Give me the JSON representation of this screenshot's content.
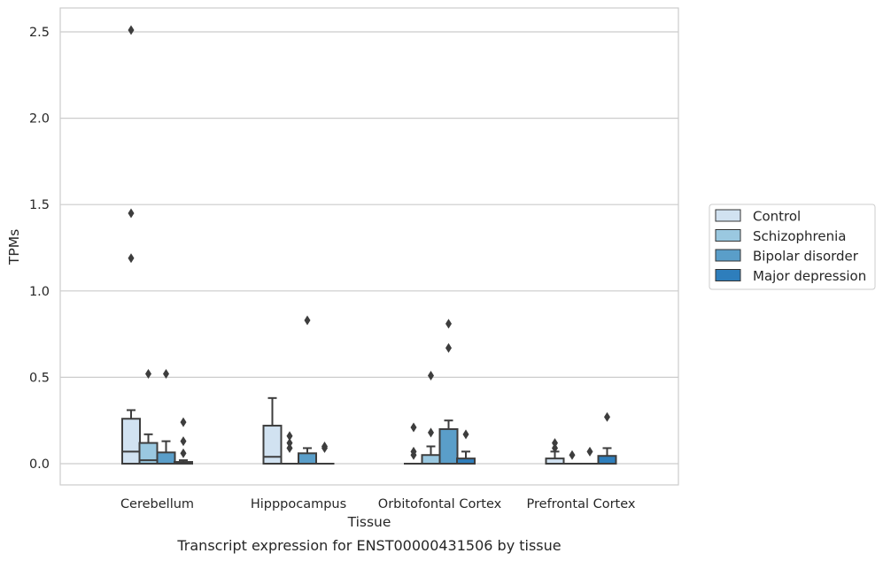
{
  "caption": "Transcript expression for ENST00000431506 by tissue",
  "chart_data": {
    "type": "boxplot",
    "xlabel": "Tissue",
    "ylabel": "TPMs",
    "ylim": [
      -0.12,
      2.64
    ],
    "yticks": [
      0.0,
      0.5,
      1.0,
      1.5,
      2.0,
      2.5
    ],
    "ytick_labels": [
      "0.0",
      "0.5",
      "1.0",
      "1.5",
      "2.0",
      "2.5"
    ],
    "grid": true,
    "legend_placement": "right",
    "categories": [
      "Cerebellum",
      "Hipppocampus",
      "Orbitofontal Cortex",
      "Prefrontal Cortex"
    ],
    "series": [
      {
        "name": "Control",
        "color": "#d1e2f1",
        "boxes": [
          {
            "q1": 0.0,
            "median": 0.07,
            "q3": 0.26,
            "wlow": 0.0,
            "whigh": 0.31,
            "fliers": [
              2.51,
              1.45,
              1.19
            ]
          },
          {
            "q1": 0.0,
            "median": 0.04,
            "q3": 0.22,
            "wlow": 0.0,
            "whigh": 0.38,
            "fliers": []
          },
          {
            "q1": 0.0,
            "median": 0.0,
            "q3": 0.0,
            "wlow": 0.0,
            "whigh": 0.0,
            "fliers": [
              0.21,
              0.07,
              0.05
            ]
          },
          {
            "q1": 0.0,
            "median": 0.0,
            "q3": 0.03,
            "wlow": 0.0,
            "whigh": 0.07,
            "fliers": [
              0.12,
              0.09
            ]
          }
        ]
      },
      {
        "name": "Schizophrenia",
        "color": "#9ac8e0",
        "boxes": [
          {
            "q1": 0.0,
            "median": 0.02,
            "q3": 0.12,
            "wlow": 0.0,
            "whigh": 0.17,
            "fliers": [
              0.52
            ]
          },
          {
            "q1": 0.0,
            "median": 0.0,
            "q3": 0.0,
            "wlow": 0.0,
            "whigh": 0.0,
            "fliers": [
              0.16,
              0.12,
              0.09
            ]
          },
          {
            "q1": 0.0,
            "median": 0.0,
            "q3": 0.05,
            "wlow": 0.0,
            "whigh": 0.1,
            "fliers": [
              0.51,
              0.18
            ]
          },
          {
            "q1": 0.0,
            "median": 0.0,
            "q3": 0.0,
            "wlow": 0.0,
            "whigh": 0.0,
            "fliers": [
              0.05
            ]
          }
        ]
      },
      {
        "name": "Bipolar disorder",
        "color": "#5a9ec9",
        "boxes": [
          {
            "q1": 0.0,
            "median": 0.0,
            "q3": 0.065,
            "wlow": 0.0,
            "whigh": 0.13,
            "fliers": [
              0.52
            ]
          },
          {
            "q1": 0.0,
            "median": 0.0,
            "q3": 0.06,
            "wlow": 0.0,
            "whigh": 0.09,
            "fliers": [
              0.83
            ]
          },
          {
            "q1": 0.0,
            "median": 0.0,
            "q3": 0.2,
            "wlow": 0.0,
            "whigh": 0.25,
            "fliers": [
              0.81,
              0.67
            ]
          },
          {
            "q1": 0.0,
            "median": 0.0,
            "q3": 0.0,
            "wlow": 0.0,
            "whigh": 0.0,
            "fliers": [
              0.07
            ]
          }
        ]
      },
      {
        "name": "Major depression",
        "color": "#2e7ebc",
        "boxes": [
          {
            "q1": 0.0,
            "median": 0.0,
            "q3": 0.01,
            "wlow": 0.0,
            "whigh": 0.02,
            "fliers": [
              0.24,
              0.13,
              0.06
            ]
          },
          {
            "q1": 0.0,
            "median": 0.0,
            "q3": 0.0,
            "wlow": 0.0,
            "whigh": 0.0,
            "fliers": [
              0.1,
              0.09
            ]
          },
          {
            "q1": 0.0,
            "median": 0.0,
            "q3": 0.03,
            "wlow": 0.0,
            "whigh": 0.07,
            "fliers": [
              0.17
            ]
          },
          {
            "q1": 0.0,
            "median": 0.0,
            "q3": 0.045,
            "wlow": 0.0,
            "whigh": 0.09,
            "fliers": [
              0.27
            ]
          }
        ]
      }
    ]
  }
}
